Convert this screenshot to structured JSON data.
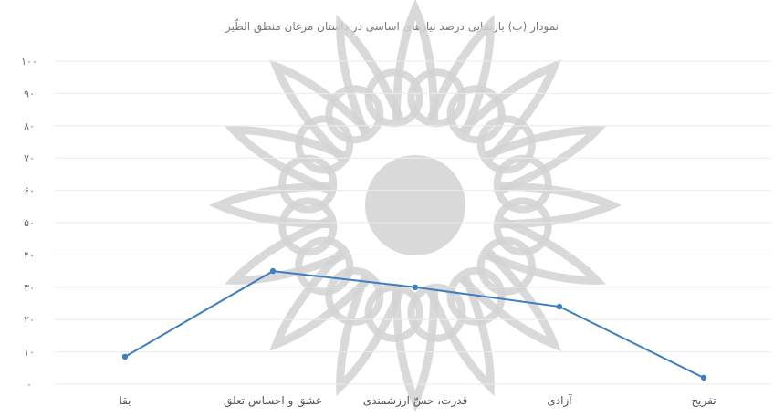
{
  "chart_data": {
    "type": "line",
    "title": "نمودار (ب) بازنمایی درصد نیازهای اساسی در داستان مرغان منطق الطّیر",
    "xlabel": "",
    "ylabel": "",
    "categories": [
      "بقا",
      "عشق و احساس تعلق",
      "قدرت، حسّ ارزشمندی",
      "آزادی",
      "تفریح"
    ],
    "ytick_labels": [
      "۰",
      "۱۰",
      "۲۰",
      "۳۰",
      "۴۰",
      "۵۰",
      "۶۰",
      "۷۰",
      "۸۰",
      "۹۰",
      "۱۰۰"
    ],
    "ylim": [
      0,
      100
    ],
    "series": [
      {
        "values": [
          8.5,
          35,
          30,
          24,
          2
        ]
      }
    ],
    "grid": true,
    "legend": "none",
    "line_color": "#3d7ebf",
    "watermark_color": "#d2d2d2"
  }
}
